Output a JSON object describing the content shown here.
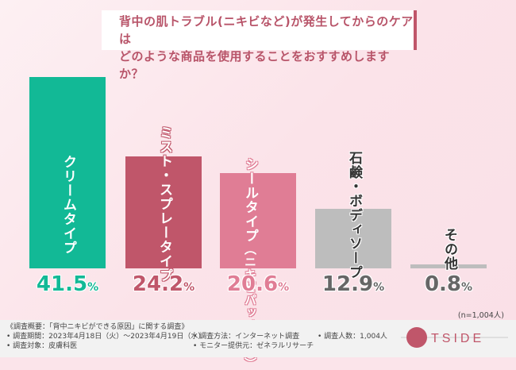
{
  "title": {
    "line1": "背中の肌トラブル(ニキビなど)が発生してからのケアは",
    "line2": "どのような商品を使用することをおすすめしますか？"
  },
  "chart_data": {
    "type": "bar",
    "title": "背中の肌トラブル(ニキビなど)が発生してからのケアはどのような商品を使用することをおすすめしますか？",
    "categories": [
      "クリームタイプ",
      "ミスト・スプレータイプ",
      "シールタイプ（ニキビパッチなど）",
      "石鹸・ボディソープ",
      "その他"
    ],
    "category_sub": [
      "",
      "",
      "（ニキビパッチなど）",
      "",
      ""
    ],
    "category_main": [
      "クリームタイプ",
      "ミスト・スプレータイプ",
      "シールタイプ",
      "石鹸・ボディソープ",
      "その他"
    ],
    "values": [
      41.5,
      24.2,
      20.6,
      12.9,
      0.8
    ],
    "value_num": [
      "41.5",
      "24.2",
      "20.6",
      "12.9",
      "0.8"
    ],
    "unit": "%",
    "colors": [
      "#12b996",
      "#c0566a",
      "#e07d95",
      "#bdbdbd",
      "#bdbdbd"
    ],
    "value_colors": [
      "#12b996",
      "#c0566a",
      "#e07d95",
      "#666666",
      "#666666"
    ],
    "ylim": [
      0,
      41.5
    ]
  },
  "n_label": "(n=1,004人)",
  "footer": {
    "summary": "《調査概要：「背中ニキビができる原因」に関する調査》",
    "period": "• 調査期間：2023年4月18日（火）～2023年4月19日（水）",
    "target": "• 調査対象：皮膚科医",
    "method": "• 調査方法：インターネット調査",
    "provider": "• モニター提供元：ゼネラルリサーチ",
    "count": "• 調査人数：1,004人"
  },
  "logo": "TSIDE"
}
